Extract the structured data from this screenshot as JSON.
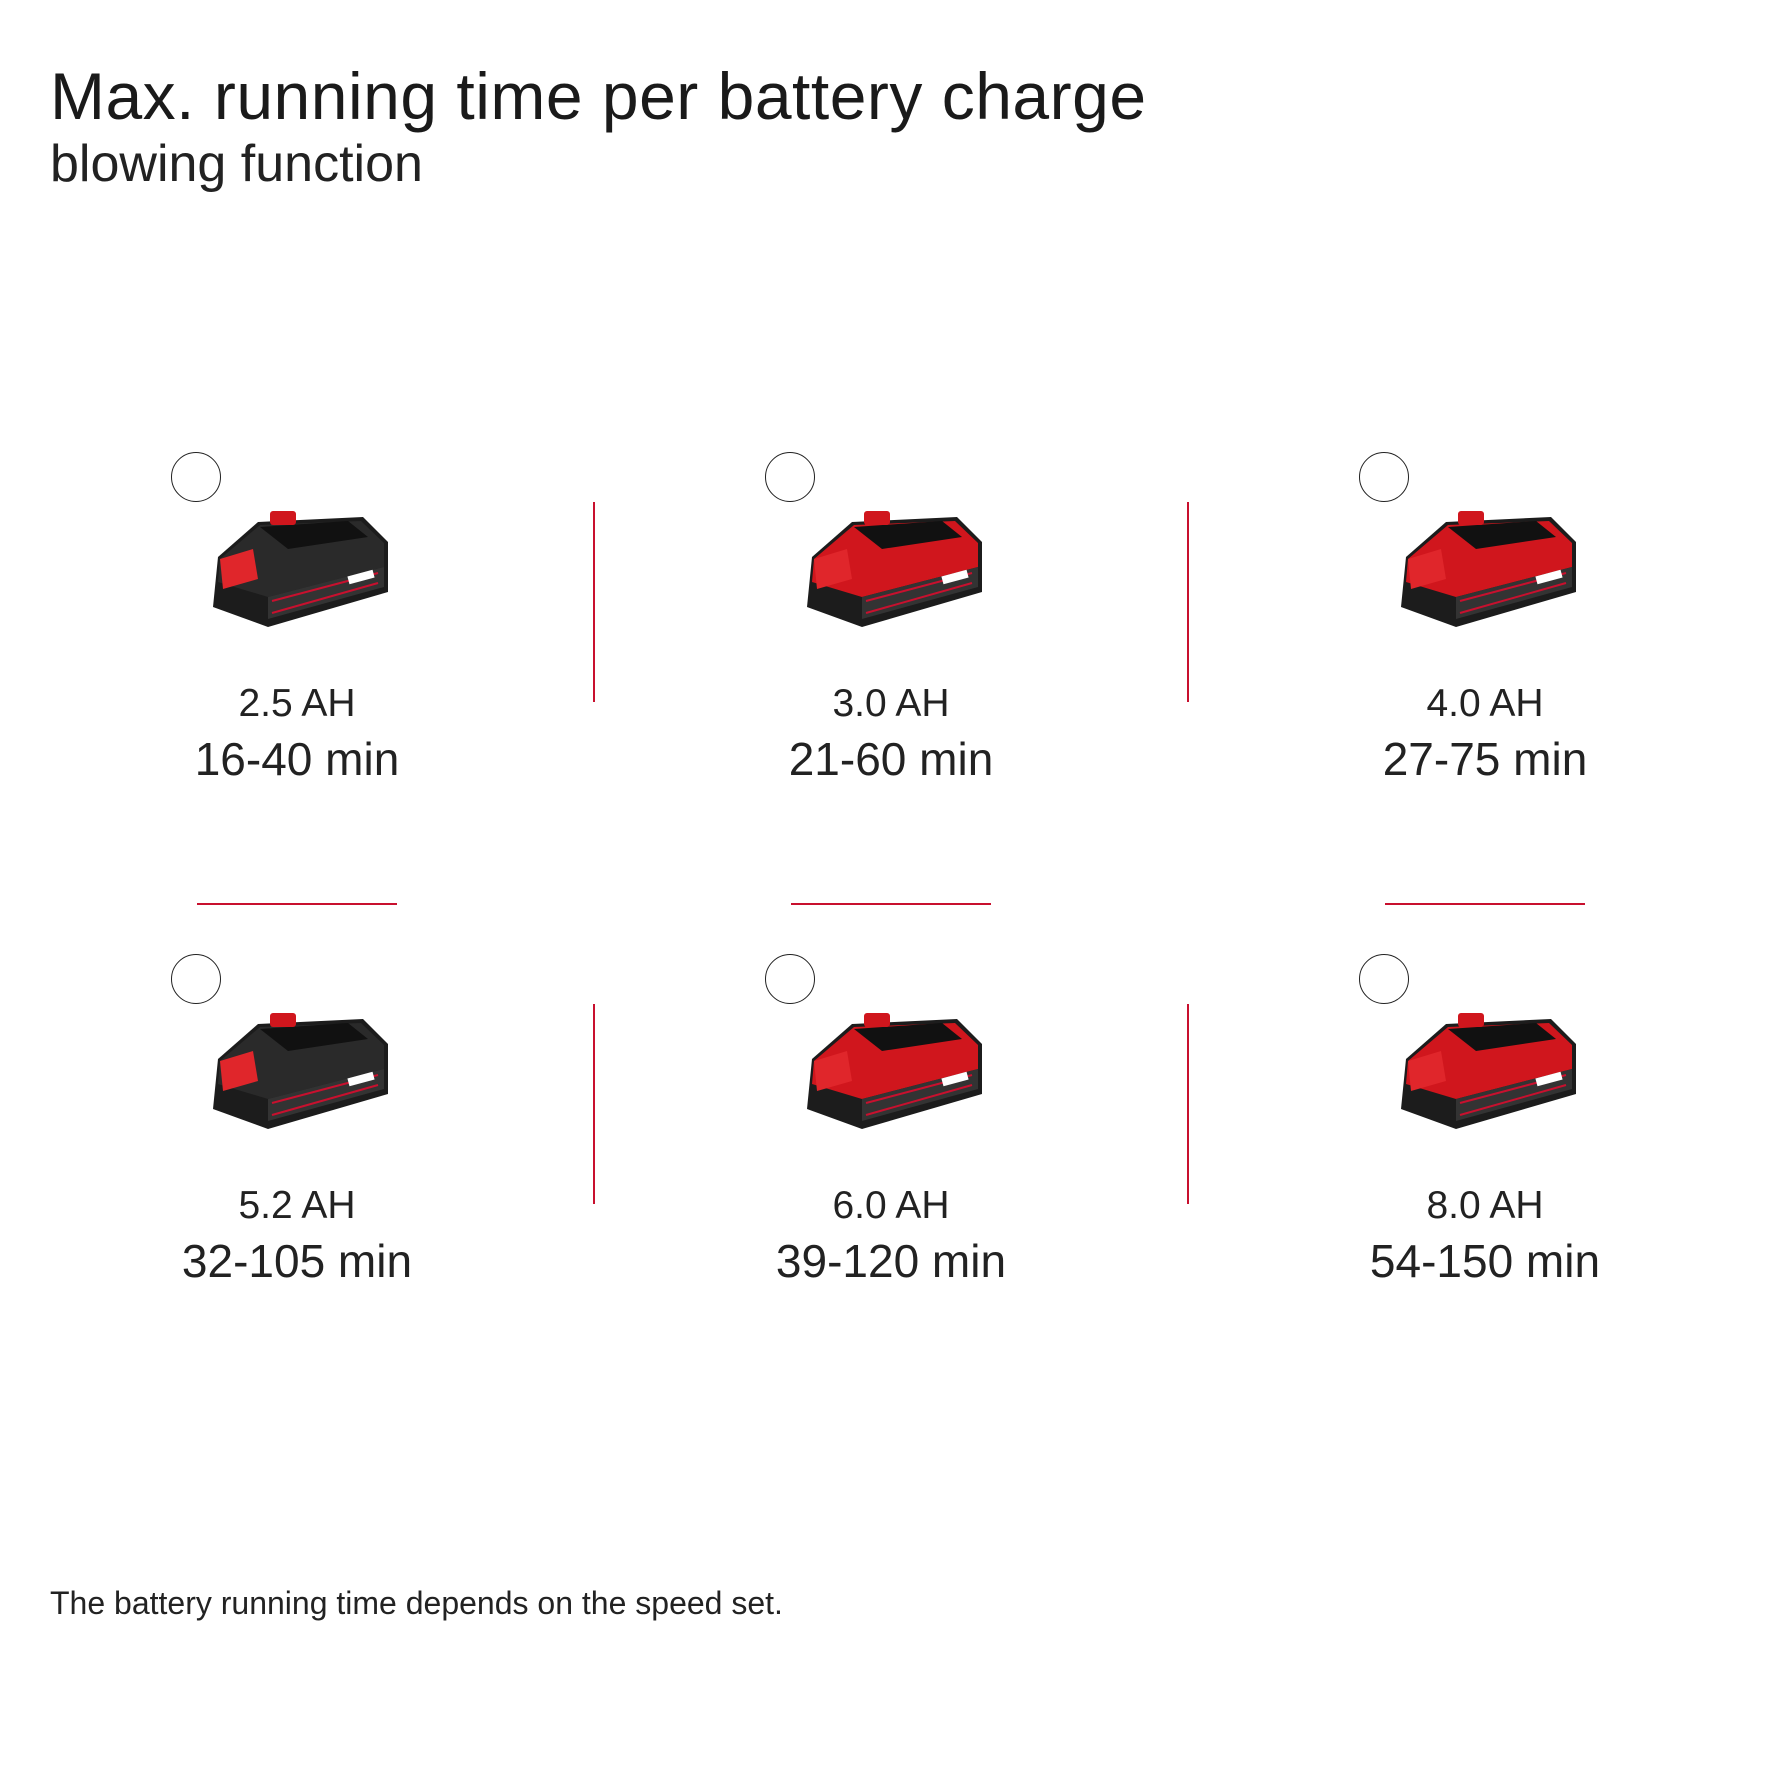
{
  "header": {
    "title": "Max. running time per battery charge",
    "subtitle": "blowing function"
  },
  "accent_color": "#c8102e",
  "batteries": [
    {
      "capacity": "2.5 AH",
      "runtime": "16-40 min",
      "icon": "battery-pack-icon",
      "body_color": "#2a2a2a"
    },
    {
      "capacity": "3.0 AH",
      "runtime": "21-60 min",
      "icon": "battery-pack-icon",
      "body_color": "#d0161d"
    },
    {
      "capacity": "4.0 AH",
      "runtime": "27-75 min",
      "icon": "battery-pack-icon",
      "body_color": "#d0161d"
    },
    {
      "capacity": "5.2 AH",
      "runtime": "32-105 min",
      "icon": "battery-pack-icon",
      "body_color": "#2a2a2a"
    },
    {
      "capacity": "6.0 AH",
      "runtime": "39-120 min",
      "icon": "battery-pack-icon",
      "body_color": "#d0161d"
    },
    {
      "capacity": "8.0 AH",
      "runtime": "54-150 min",
      "icon": "battery-pack-icon",
      "body_color": "#d0161d"
    }
  ],
  "footnote": "The battery running time depends on the speed set."
}
